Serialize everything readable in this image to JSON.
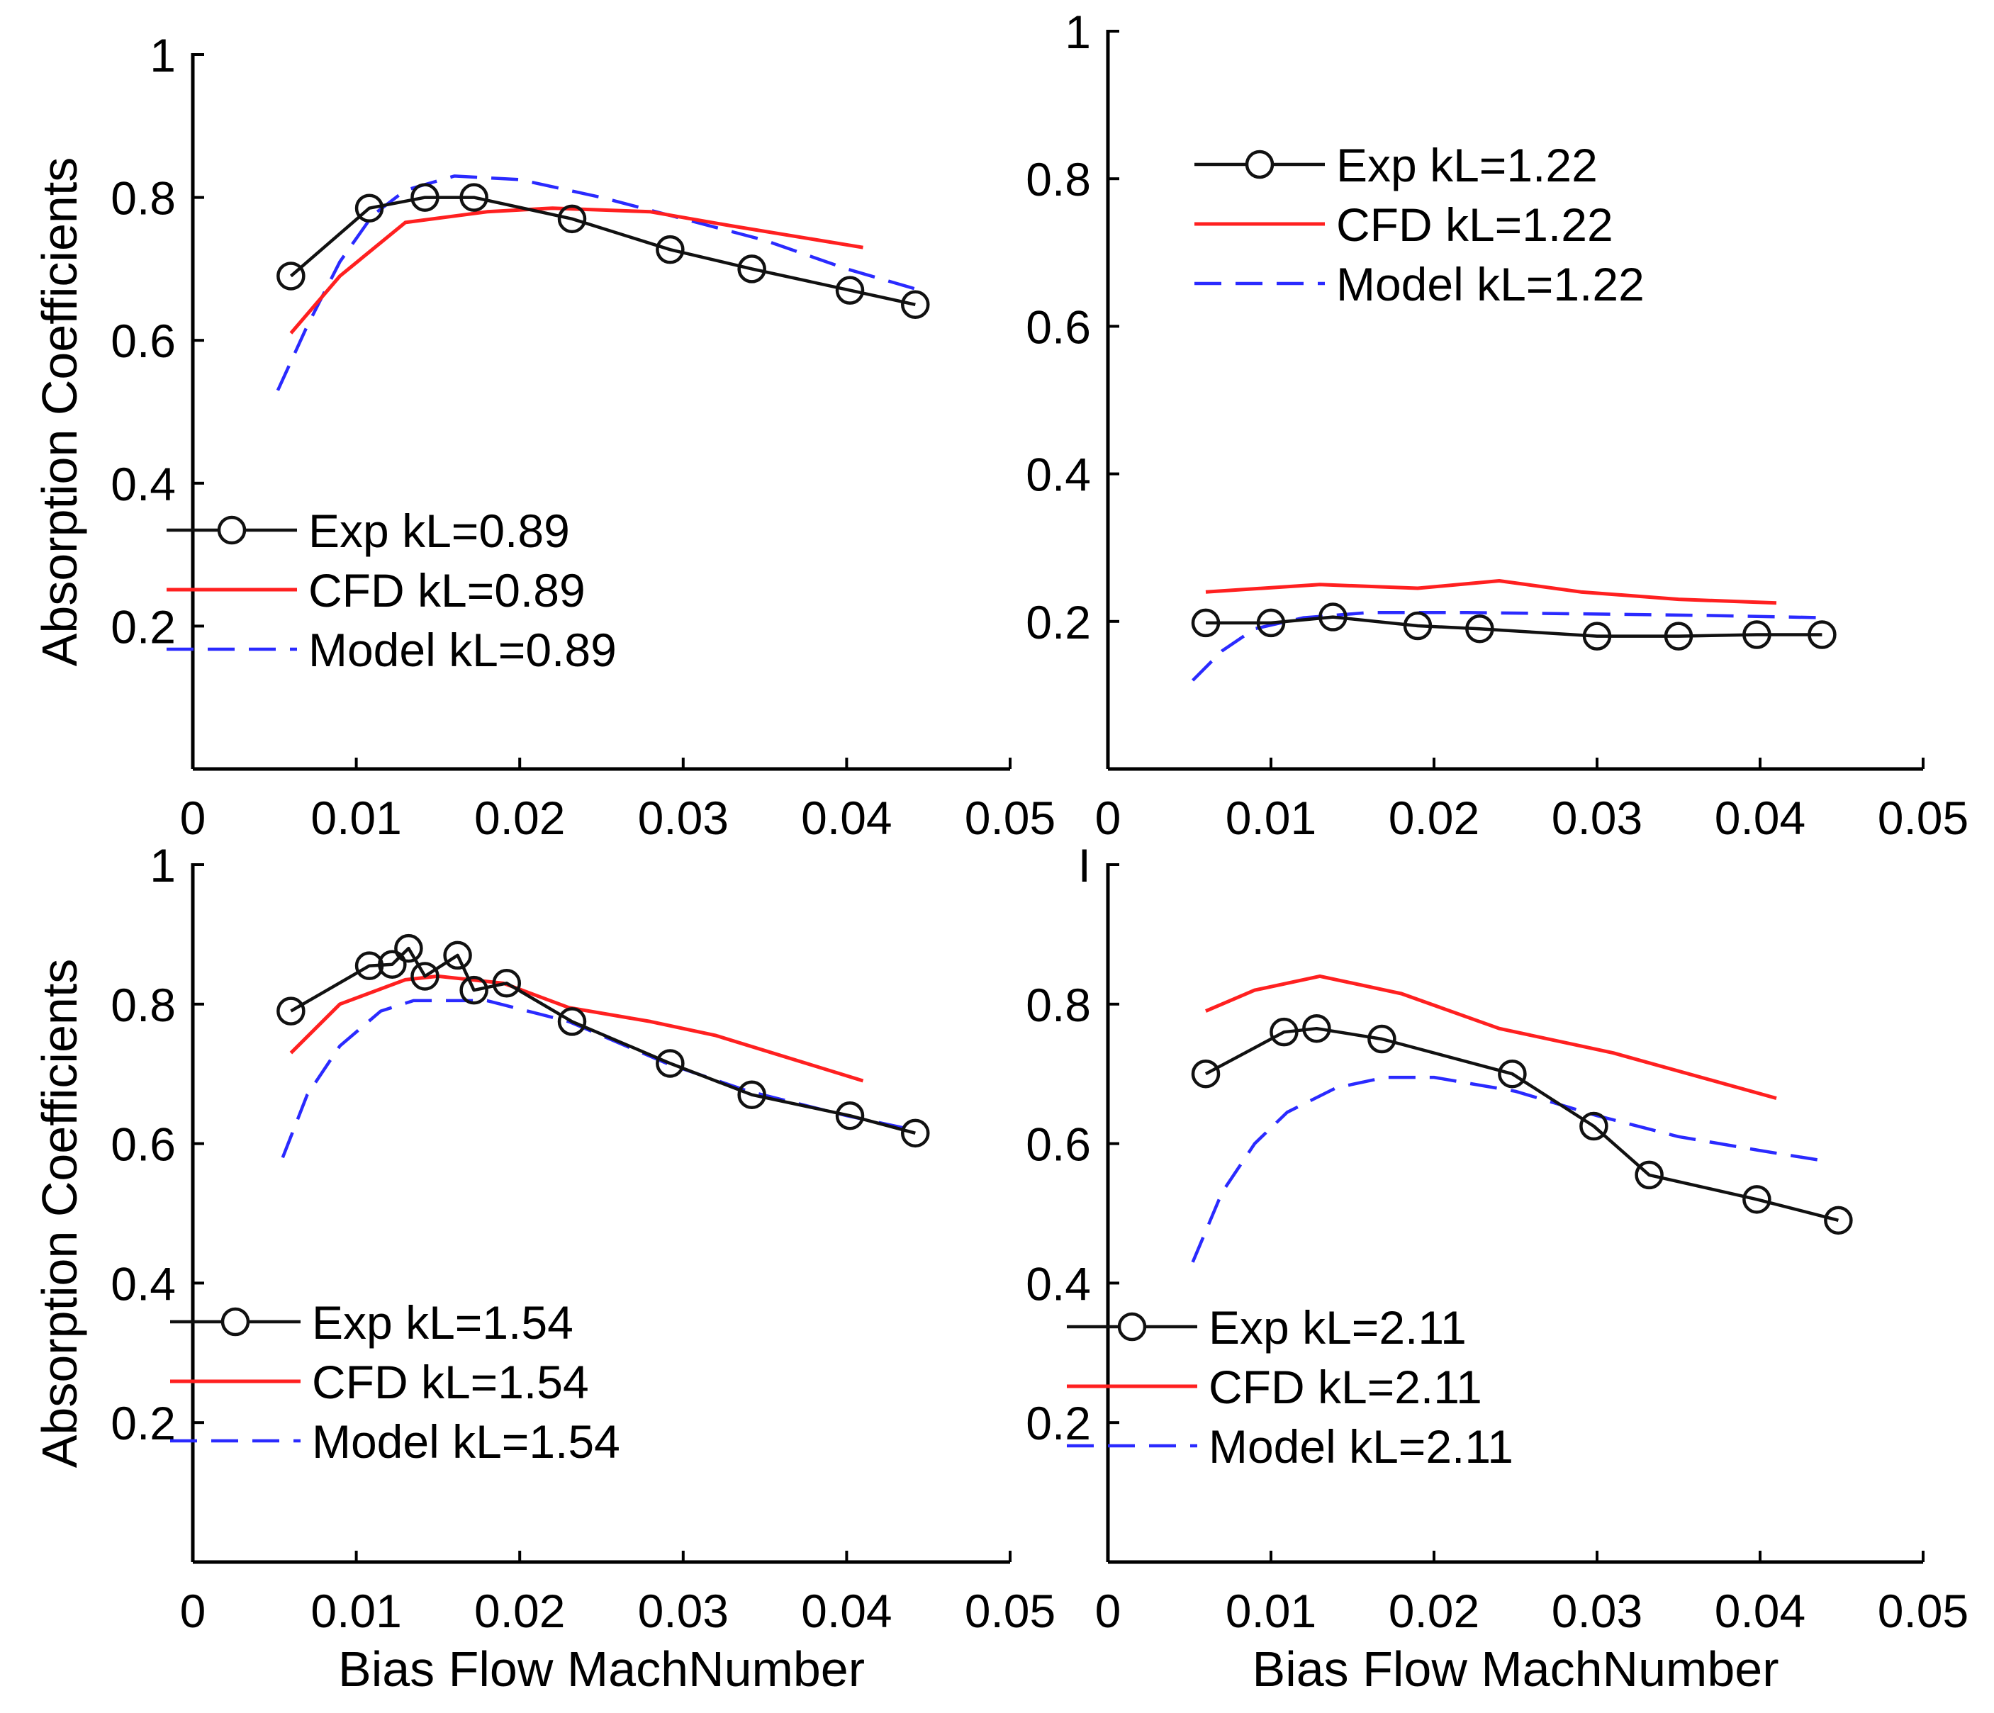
{
  "chart_data": [
    {
      "type": "line",
      "panel": "top-left",
      "xlabel": "",
      "ylabel": "Absorption Coefficients",
      "xlim": [
        0,
        0.05
      ],
      "ylim": [
        0,
        1
      ],
      "xticks": [
        "0",
        "0.01",
        "0.02",
        "0.03",
        "0.04",
        "0.05"
      ],
      "yticks": [
        "0.2",
        "0.4",
        "0.6",
        "0.8",
        "1"
      ],
      "yticks_values": [
        0.2,
        0.4,
        0.6,
        0.8,
        1
      ],
      "legend_position": "lower-left",
      "series": [
        {
          "name": "Exp kL=0.89",
          "style": "exp",
          "color": "#000000",
          "x": [
            0.006,
            0.0108,
            0.0142,
            0.0172,
            0.0232,
            0.0292,
            0.0342,
            0.0402,
            0.0442
          ],
          "y": [
            0.69,
            0.785,
            0.8,
            0.8,
            0.77,
            0.727,
            0.7,
            0.67,
            0.65
          ]
        },
        {
          "name": "CFD kL=0.89",
          "style": "cfd",
          "color": "#ff0000",
          "x": [
            0.006,
            0.009,
            0.013,
            0.018,
            0.022,
            0.028,
            0.033,
            0.041
          ],
          "y": [
            0.61,
            0.69,
            0.765,
            0.78,
            0.785,
            0.78,
            0.76,
            0.73
          ]
        },
        {
          "name": "Model kL=0.89",
          "style": "model",
          "color": "#0000ff",
          "x": [
            0.0052,
            0.007,
            0.009,
            0.011,
            0.013,
            0.016,
            0.02,
            0.025,
            0.03,
            0.035,
            0.04,
            0.0445
          ],
          "y": [
            0.53,
            0.62,
            0.71,
            0.775,
            0.81,
            0.83,
            0.825,
            0.8,
            0.77,
            0.74,
            0.7,
            0.67
          ]
        }
      ]
    },
    {
      "type": "line",
      "panel": "top-right",
      "xlabel": "",
      "ylabel": "",
      "xlim": [
        0,
        0.05
      ],
      "ylim": [
        0,
        1
      ],
      "xticks": [
        "0",
        "0.01",
        "0.02",
        "0.03",
        "0.04",
        "0.05"
      ],
      "yticks": [
        "0.2",
        "0.4",
        "0.6",
        "0.8",
        "1"
      ],
      "yticks_values": [
        0.2,
        0.4,
        0.6,
        0.8,
        1
      ],
      "legend_position": "top-right",
      "series": [
        {
          "name": "Exp kL=1.22",
          "style": "exp",
          "color": "#000000",
          "x": [
            0.006,
            0.01,
            0.0138,
            0.019,
            0.0228,
            0.03,
            0.035,
            0.0398,
            0.0438
          ],
          "y": [
            0.198,
            0.198,
            0.206,
            0.194,
            0.19,
            0.18,
            0.18,
            0.182,
            0.182
          ]
        },
        {
          "name": "CFD kL=1.22",
          "style": "cfd",
          "color": "#ff0000",
          "x": [
            0.006,
            0.013,
            0.019,
            0.024,
            0.029,
            0.035,
            0.041
          ],
          "y": [
            0.24,
            0.25,
            0.245,
            0.255,
            0.24,
            0.23,
            0.225
          ]
        },
        {
          "name": "Model kL=1.22",
          "style": "model",
          "color": "#0000ff",
          "x": [
            0.0052,
            0.007,
            0.009,
            0.012,
            0.016,
            0.022,
            0.03,
            0.037,
            0.044
          ],
          "y": [
            0.12,
            0.16,
            0.19,
            0.205,
            0.212,
            0.212,
            0.21,
            0.208,
            0.205
          ]
        }
      ]
    },
    {
      "type": "line",
      "panel": "bottom-left",
      "xlabel": "Bias Flow MachNumber",
      "ylabel": "Absorption Coefficients",
      "xlim": [
        0,
        0.05
      ],
      "ylim": [
        0,
        1
      ],
      "xticks": [
        "0",
        "0.01",
        "0.02",
        "0.03",
        "0.04",
        "0.05"
      ],
      "yticks": [
        "0.2",
        "0.4",
        "0.6",
        "0.8",
        "1"
      ],
      "yticks_values": [
        0.2,
        0.4,
        0.6,
        0.8,
        1
      ],
      "legend_position": "lower-left",
      "series": [
        {
          "name": "Exp kL=1.54",
          "style": "exp",
          "color": "#000000",
          "x": [
            0.006,
            0.0108,
            0.0122,
            0.0132,
            0.0142,
            0.0162,
            0.0172,
            0.0192,
            0.0232,
            0.0292,
            0.0342,
            0.0402,
            0.0442
          ],
          "y": [
            0.79,
            0.855,
            0.857,
            0.88,
            0.84,
            0.87,
            0.82,
            0.83,
            0.775,
            0.715,
            0.67,
            0.64,
            0.615
          ]
        },
        {
          "name": "CFD kL=1.54",
          "style": "cfd",
          "color": "#ff0000",
          "x": [
            0.006,
            0.009,
            0.013,
            0.015,
            0.019,
            0.023,
            0.028,
            0.032,
            0.041
          ],
          "y": [
            0.73,
            0.8,
            0.835,
            0.84,
            0.83,
            0.795,
            0.775,
            0.755,
            0.69
          ]
        },
        {
          "name": "Model kL=1.54",
          "style": "model",
          "color": "#0000ff",
          "x": [
            0.0055,
            0.007,
            0.009,
            0.0115,
            0.0135,
            0.018,
            0.023,
            0.029,
            0.034,
            0.04,
            0.044
          ],
          "y": [
            0.58,
            0.67,
            0.74,
            0.79,
            0.805,
            0.805,
            0.775,
            0.715,
            0.675,
            0.64,
            0.62
          ]
        }
      ]
    },
    {
      "type": "line",
      "panel": "bottom-right",
      "xlabel": "Bias Flow MachNumber",
      "ylabel": "",
      "xlim": [
        0,
        0.05
      ],
      "ylim": [
        0,
        1
      ],
      "xticks": [
        "0",
        "0.01",
        "0.02",
        "0.03",
        "0.04",
        "0.05"
      ],
      "yticks": [
        "0.2",
        "0.4",
        "0.6",
        "0.8",
        "I"
      ],
      "yticks_values": [
        0.2,
        0.4,
        0.6,
        0.8,
        1
      ],
      "legend_position": "lower-left",
      "series": [
        {
          "name": "Exp kL=2.11",
          "style": "exp",
          "color": "#000000",
          "x": [
            0.006,
            0.0108,
            0.0128,
            0.0168,
            0.0248,
            0.0298,
            0.0332,
            0.0398,
            0.0448
          ],
          "y": [
            0.7,
            0.76,
            0.765,
            0.75,
            0.7,
            0.625,
            0.555,
            0.52,
            0.49
          ]
        },
        {
          "name": "CFD kL=2.11",
          "style": "cfd",
          "color": "#ff0000",
          "x": [
            0.006,
            0.009,
            0.013,
            0.018,
            0.024,
            0.031,
            0.041
          ],
          "y": [
            0.79,
            0.82,
            0.84,
            0.815,
            0.765,
            0.73,
            0.665
          ]
        },
        {
          "name": "Model kL=2.11",
          "style": "model",
          "color": "#0000ff",
          "x": [
            0.0052,
            0.007,
            0.009,
            0.011,
            0.014,
            0.017,
            0.02,
            0.025,
            0.03,
            0.035,
            0.04,
            0.044
          ],
          "y": [
            0.43,
            0.53,
            0.6,
            0.645,
            0.68,
            0.695,
            0.695,
            0.675,
            0.64,
            0.61,
            0.59,
            0.575
          ]
        }
      ]
    }
  ]
}
